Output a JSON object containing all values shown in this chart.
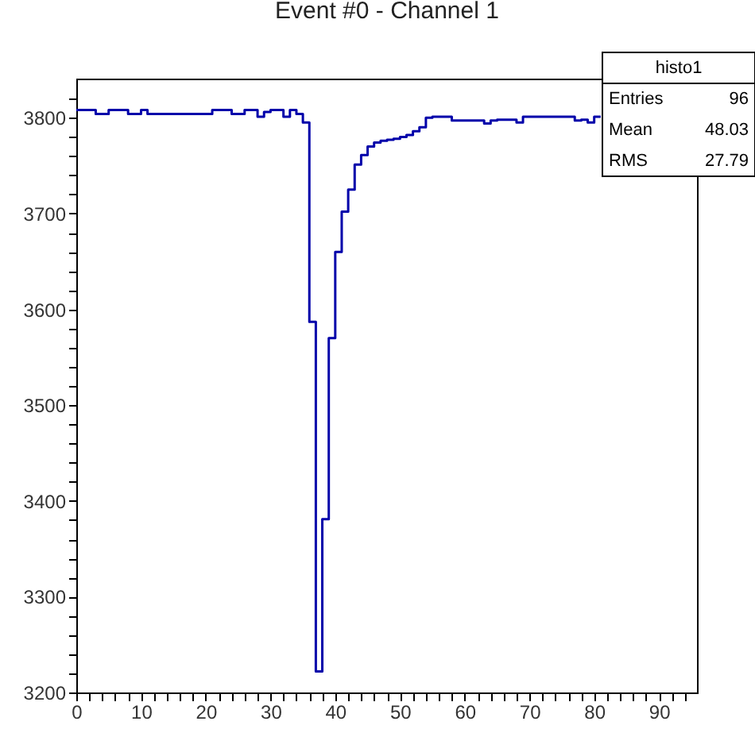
{
  "chart_data": {
    "type": "histogram",
    "title": "Event #0 - Channel 1",
    "bins": [
      0,
      1,
      2,
      3,
      4,
      5,
      6,
      7,
      8,
      9,
      10,
      11,
      12,
      13,
      14,
      15,
      16,
      17,
      18,
      19,
      20,
      21,
      22,
      23,
      24,
      25,
      26,
      27,
      28,
      29,
      30,
      31,
      32,
      33,
      34,
      35,
      36,
      37,
      38,
      39,
      40,
      41,
      42,
      43,
      44,
      45,
      46,
      47,
      48,
      49,
      50,
      51,
      52,
      53,
      54,
      55,
      56,
      57,
      58,
      59,
      60,
      61,
      62,
      63,
      64,
      65,
      66,
      67,
      68,
      69,
      70,
      71,
      72,
      73,
      74,
      75,
      76,
      77,
      78,
      79,
      80,
      81
    ],
    "values": [
      3808,
      3808,
      3808,
      3804,
      3804,
      3808,
      3808,
      3808,
      3804,
      3804,
      3808,
      3804,
      3804,
      3804,
      3804,
      3804,
      3804,
      3804,
      3804,
      3804,
      3804,
      3808,
      3808,
      3808,
      3804,
      3804,
      3808,
      3808,
      3801,
      3806,
      3808,
      3808,
      3801,
      3808,
      3804,
      3795,
      3587,
      3222,
      3381,
      3570,
      3660,
      3702,
      3725,
      3751,
      3761,
      3770,
      3774,
      3776,
      3777,
      3778,
      3780,
      3782,
      3786,
      3790,
      3800,
      3801,
      3801,
      3801,
      3797,
      3797,
      3797,
      3797,
      3797,
      3794,
      3797,
      3798,
      3798,
      3798,
      3795,
      3801,
      3801,
      3801,
      3801,
      3801,
      3801,
      3801,
      3801,
      3797,
      3798,
      3795,
      3801
    ],
    "color": "#0000aa",
    "xlim": [
      0,
      96
    ],
    "xticks": [
      0,
      {
        "value": 2,
        "label": null
      },
      {
        "value": 4,
        "label": null
      },
      {
        "value": 6,
        "label": null
      },
      {
        "value": 8,
        "label": null
      },
      10,
      {
        "value": 12,
        "label": null
      },
      {
        "value": 14,
        "label": null
      },
      {
        "value": 16,
        "label": null
      },
      {
        "value": 18,
        "label": null
      },
      20,
      {
        "value": 22,
        "label": null
      },
      {
        "value": 24,
        "label": null
      },
      {
        "value": 26,
        "label": null
      },
      {
        "value": 28,
        "label": null
      },
      30,
      {
        "value": 32,
        "label": null
      },
      {
        "value": 34,
        "label": null
      },
      {
        "value": 36,
        "label": null
      },
      {
        "value": 38,
        "label": null
      },
      40,
      {
        "value": 42,
        "label": null
      },
      {
        "value": 44,
        "label": null
      },
      {
        "value": 46,
        "label": null
      },
      {
        "value": 48,
        "label": null
      },
      50,
      {
        "value": 52,
        "label": null
      },
      {
        "value": 54,
        "label": null
      },
      {
        "value": 56,
        "label": null
      },
      {
        "value": 58,
        "label": null
      },
      60,
      {
        "value": 62,
        "label": null
      },
      {
        "value": 64,
        "label": null
      },
      {
        "value": 66,
        "label": null
      },
      {
        "value": 68,
        "label": null
      },
      70,
      {
        "value": 72,
        "label": null
      },
      {
        "value": 74,
        "label": null
      },
      {
        "value": 76,
        "label": null
      },
      {
        "value": 78,
        "label": null
      },
      80,
      {
        "value": 82,
        "label": null
      },
      {
        "value": 84,
        "label": null
      },
      {
        "value": 86,
        "label": null
      },
      {
        "value": 88,
        "label": null
      },
      90,
      {
        "value": 92,
        "label": null
      },
      {
        "value": 94,
        "label": null
      }
    ],
    "ylim": [
      3200,
      3840
    ],
    "yticks": [
      3200,
      {
        "value": 3220,
        "label": null
      },
      {
        "value": 3240,
        "label": null
      },
      {
        "value": 3260,
        "label": null
      },
      {
        "value": 3280,
        "label": null
      },
      3300,
      {
        "value": 3320,
        "label": null
      },
      {
        "value": 3340,
        "label": null
      },
      {
        "value": 3360,
        "label": null
      },
      {
        "value": 3380,
        "label": null
      },
      3400,
      {
        "value": 3420,
        "label": null
      },
      {
        "value": 3440,
        "label": null
      },
      {
        "value": 3460,
        "label": null
      },
      {
        "value": 3480,
        "label": null
      },
      3500,
      {
        "value": 3520,
        "label": null
      },
      {
        "value": 3540,
        "label": null
      },
      {
        "value": 3560,
        "label": null
      },
      {
        "value": 3580,
        "label": null
      },
      3600,
      {
        "value": 3620,
        "label": null
      },
      {
        "value": 3640,
        "label": null
      },
      {
        "value": 3660,
        "label": null
      },
      {
        "value": 3680,
        "label": null
      },
      3700,
      {
        "value": 3720,
        "label": null
      },
      {
        "value": 3740,
        "label": null
      },
      {
        "value": 3760,
        "label": null
      },
      {
        "value": 3780,
        "label": null
      },
      3800,
      {
        "value": 3820,
        "label": null
      }
    ],
    "grid": false,
    "annotations": [
      "histo1",
      "Entries 96",
      "Mean 48.03",
      "RMS 27.79"
    ]
  }
}
